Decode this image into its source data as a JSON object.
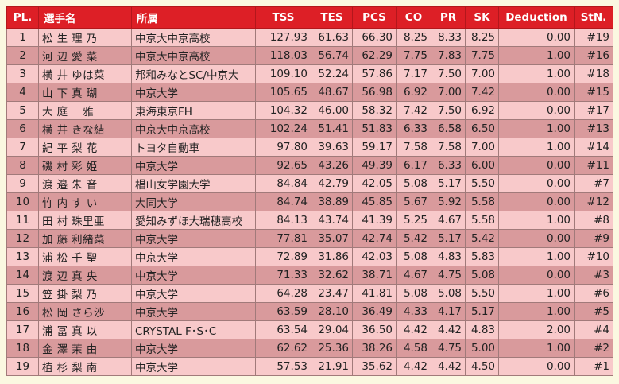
{
  "headers": {
    "pl": "PL.",
    "name": "選手名",
    "club": "所属",
    "tss": "TSS",
    "tes": "TES",
    "pcs": "PCS",
    "co": "CO",
    "pr": "PR",
    "sk": "SK",
    "deduction": "Deduction",
    "stn": "StN."
  },
  "rows": [
    {
      "pl": "1",
      "name": "松 生 理 乃",
      "club": "中京大中京高校",
      "tss": "127.93",
      "tes": "61.63",
      "pcs": "66.30",
      "co": "8.25",
      "pr": "8.33",
      "sk": "8.25",
      "ded": "0.00",
      "stn": "#19"
    },
    {
      "pl": "2",
      "name": "河 辺 愛 菜",
      "club": "中京大中京高校",
      "tss": "118.03",
      "tes": "56.74",
      "pcs": "62.29",
      "co": "7.75",
      "pr": "7.83",
      "sk": "7.75",
      "ded": "1.00",
      "stn": "#16"
    },
    {
      "pl": "3",
      "name": "横 井 ゆは菜",
      "club": "邦和みなとSC/中京大",
      "tss": "109.10",
      "tes": "52.24",
      "pcs": "57.86",
      "co": "7.17",
      "pr": "7.50",
      "sk": "7.00",
      "ded": "1.00",
      "stn": "#18"
    },
    {
      "pl": "4",
      "name": "山 下 真 瑚",
      "club": "中京大学",
      "tss": "105.65",
      "tes": "48.67",
      "pcs": "56.98",
      "co": "6.92",
      "pr": "7.00",
      "sk": "7.42",
      "ded": "0.00",
      "stn": "#15"
    },
    {
      "pl": "5",
      "name": "大 庭　 雅",
      "club": "東海東京FH",
      "tss": "104.32",
      "tes": "46.00",
      "pcs": "58.32",
      "co": "7.42",
      "pr": "7.50",
      "sk": "6.92",
      "ded": "0.00",
      "stn": "#17"
    },
    {
      "pl": "6",
      "name": "横 井 きな結",
      "club": "中京大中京高校",
      "tss": "102.24",
      "tes": "51.41",
      "pcs": "51.83",
      "co": "6.33",
      "pr": "6.58",
      "sk": "6.50",
      "ded": "1.00",
      "stn": "#13"
    },
    {
      "pl": "7",
      "name": "紀 平 梨 花",
      "club": "トヨタ自動車",
      "tss": "97.80",
      "tes": "39.63",
      "pcs": "59.17",
      "co": "7.58",
      "pr": "7.58",
      "sk": "7.00",
      "ded": "1.00",
      "stn": "#14"
    },
    {
      "pl": "8",
      "name": "磯 村 彩 姫",
      "club": "中京大学",
      "tss": "92.65",
      "tes": "43.26",
      "pcs": "49.39",
      "co": "6.17",
      "pr": "6.33",
      "sk": "6.00",
      "ded": "0.00",
      "stn": "#11"
    },
    {
      "pl": "9",
      "name": "渡 邉 朱 音",
      "club": "椙山女学園大学",
      "tss": "84.84",
      "tes": "42.79",
      "pcs": "42.05",
      "co": "5.08",
      "pr": "5.17",
      "sk": "5.50",
      "ded": "0.00",
      "stn": "#7"
    },
    {
      "pl": "10",
      "name": "竹 内 す い",
      "club": "大同大学",
      "tss": "84.74",
      "tes": "38.89",
      "pcs": "45.85",
      "co": "5.67",
      "pr": "5.92",
      "sk": "5.58",
      "ded": "0.00",
      "stn": "#12"
    },
    {
      "pl": "11",
      "name": "田 村 珠里亜",
      "club": "愛知みずほ大瑞穂高校",
      "tss": "84.13",
      "tes": "43.74",
      "pcs": "41.39",
      "co": "5.25",
      "pr": "4.67",
      "sk": "5.58",
      "ded": "1.00",
      "stn": "#8"
    },
    {
      "pl": "12",
      "name": "加 藤 利緒菜",
      "club": "中京大学",
      "tss": "77.81",
      "tes": "35.07",
      "pcs": "42.74",
      "co": "5.42",
      "pr": "5.17",
      "sk": "5.42",
      "ded": "0.00",
      "stn": "#9"
    },
    {
      "pl": "13",
      "name": "浦 松 千 聖",
      "club": "中京大学",
      "tss": "72.89",
      "tes": "31.86",
      "pcs": "42.03",
      "co": "5.08",
      "pr": "4.83",
      "sk": "5.83",
      "ded": "1.00",
      "stn": "#10"
    },
    {
      "pl": "14",
      "name": "渡 辺 真 央",
      "club": "中京大学",
      "tss": "71.33",
      "tes": "32.62",
      "pcs": "38.71",
      "co": "4.67",
      "pr": "4.75",
      "sk": "5.08",
      "ded": "0.00",
      "stn": "#3"
    },
    {
      "pl": "15",
      "name": "笠 掛 梨 乃",
      "club": "中京大学",
      "tss": "64.28",
      "tes": "23.47",
      "pcs": "41.81",
      "co": "5.08",
      "pr": "5.08",
      "sk": "5.50",
      "ded": "1.00",
      "stn": "#6"
    },
    {
      "pl": "16",
      "name": "松 岡 さら沙",
      "club": "中京大学",
      "tss": "63.59",
      "tes": "28.10",
      "pcs": "36.49",
      "co": "4.33",
      "pr": "4.17",
      "sk": "5.17",
      "ded": "1.00",
      "stn": "#5"
    },
    {
      "pl": "17",
      "name": "浦 冨 真 以",
      "club": "CRYSTAL F･S･C",
      "tss": "63.54",
      "tes": "29.04",
      "pcs": "36.50",
      "co": "4.42",
      "pr": "4.42",
      "sk": "4.83",
      "ded": "2.00",
      "stn": "#4"
    },
    {
      "pl": "18",
      "name": "金 澤 茉 由",
      "club": "中京大学",
      "tss": "62.62",
      "tes": "25.36",
      "pcs": "38.26",
      "co": "4.58",
      "pr": "4.75",
      "sk": "5.00",
      "ded": "1.00",
      "stn": "#2"
    },
    {
      "pl": "19",
      "name": "植 杉 梨 南",
      "club": "中京大学",
      "tss": "57.53",
      "tes": "21.91",
      "pcs": "35.62",
      "co": "4.42",
      "pr": "4.42",
      "sk": "4.50",
      "ded": "0.00",
      "stn": "#1"
    }
  ]
}
